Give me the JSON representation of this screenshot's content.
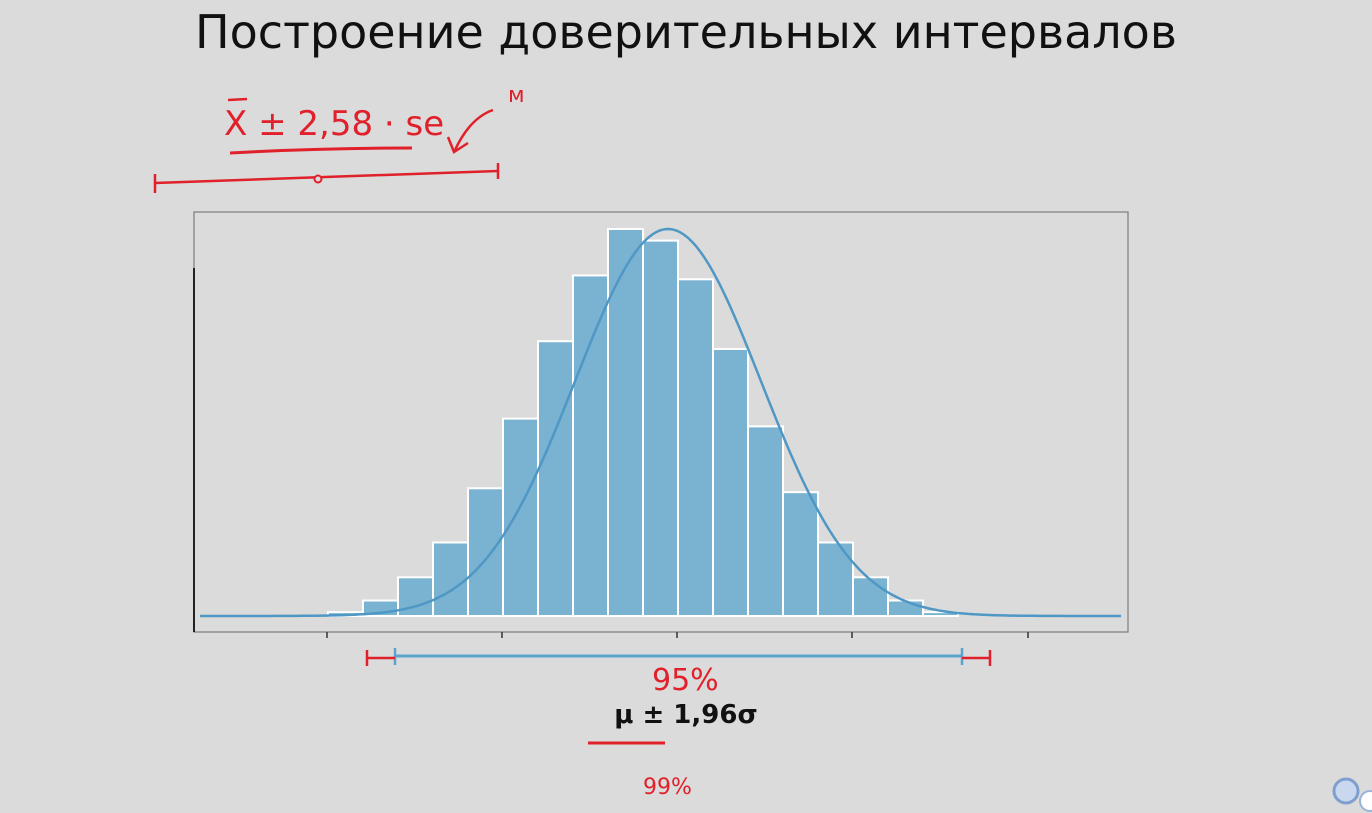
{
  "slide": {
    "title": "Построение доверительных интервалов"
  },
  "annotations": {
    "top_formula": "X ± 2,58 · se",
    "top_mark": "м",
    "label_95": "95%",
    "label_99": "99%"
  },
  "formula": {
    "text": "μ  ± 1,96σ"
  },
  "colors": {
    "background": "#dbdbdb",
    "bar_fill": "#7ab3d1",
    "curve": "#4f97c4",
    "annotation_red": "#e0202a"
  },
  "chart_data": {
    "type": "bar",
    "description_type": "histogram with normal density curve",
    "values": [
      1,
      4,
      10,
      19,
      33,
      51,
      71,
      88,
      100,
      97,
      87,
      69,
      49,
      32,
      19,
      10,
      4,
      1
    ],
    "curve": "normal",
    "interval_95": "μ ± 1,96σ"
  }
}
